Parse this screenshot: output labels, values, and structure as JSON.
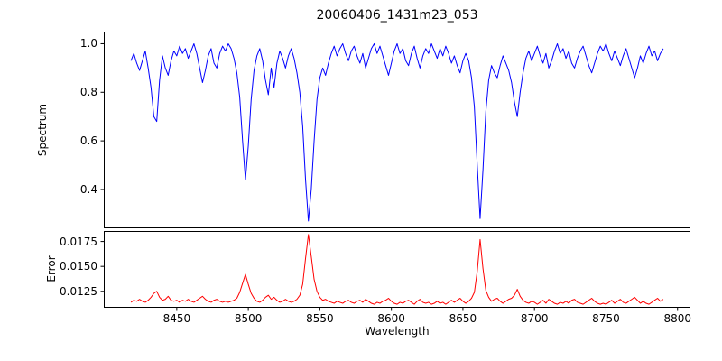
{
  "chart_data": {
    "type": "line",
    "title": "20060406_1431m23_053",
    "xlabel": "Wavelength",
    "grid": false,
    "legend_position": null,
    "xticks": [
      8450,
      8500,
      8550,
      8600,
      8650,
      8700,
      8750,
      8800
    ],
    "xtick_labels": [
      "8450",
      "8500",
      "8550",
      "8600",
      "8650",
      "8700",
      "8750",
      "8800"
    ],
    "x": [
      8418,
      8420,
      8422,
      8424,
      8426,
      8428,
      8430,
      8432,
      8434,
      8436,
      8438,
      8440,
      8442,
      8444,
      8446,
      8448,
      8450,
      8452,
      8454,
      8456,
      8458,
      8460,
      8462,
      8464,
      8466,
      8468,
      8470,
      8472,
      8474,
      8476,
      8478,
      8480,
      8482,
      8484,
      8486,
      8488,
      8490,
      8492,
      8494,
      8496,
      8498,
      8500,
      8502,
      8504,
      8506,
      8508,
      8510,
      8512,
      8514,
      8516,
      8518,
      8520,
      8522,
      8524,
      8526,
      8528,
      8530,
      8532,
      8534,
      8536,
      8538,
      8540,
      8542,
      8544,
      8546,
      8548,
      8550,
      8552,
      8554,
      8556,
      8558,
      8560,
      8562,
      8564,
      8566,
      8568,
      8570,
      8572,
      8574,
      8576,
      8578,
      8580,
      8582,
      8584,
      8586,
      8588,
      8590,
      8592,
      8594,
      8596,
      8598,
      8600,
      8602,
      8604,
      8606,
      8608,
      8610,
      8612,
      8614,
      8616,
      8618,
      8620,
      8622,
      8624,
      8626,
      8628,
      8630,
      8632,
      8634,
      8636,
      8638,
      8640,
      8642,
      8644,
      8646,
      8648,
      8650,
      8652,
      8654,
      8656,
      8658,
      8660,
      8662,
      8664,
      8666,
      8668,
      8670,
      8672,
      8674,
      8676,
      8678,
      8680,
      8682,
      8684,
      8686,
      8688,
      8690,
      8692,
      8694,
      8696,
      8698,
      8700,
      8702,
      8704,
      8706,
      8708,
      8710,
      8712,
      8714,
      8716,
      8718,
      8720,
      8722,
      8724,
      8726,
      8728,
      8730,
      8732,
      8734,
      8736,
      8738,
      8740,
      8742,
      8744,
      8746,
      8748,
      8750,
      8752,
      8754,
      8756,
      8758,
      8760,
      8762,
      8764,
      8766,
      8768,
      8770,
      8772,
      8774,
      8776,
      8778,
      8780,
      8782,
      8784,
      8786,
      8788,
      8790
    ],
    "panels": [
      {
        "name": "spectrum-line",
        "ylabel": "Spectrum",
        "color": "#0000ff",
        "xlim": [
          8399,
          8809
        ],
        "ylim": [
          0.24,
          1.05
        ],
        "yticks": [
          0.4,
          0.6,
          0.8,
          1.0
        ],
        "ytick_labels": [
          "0.4",
          "0.6",
          "0.8",
          "1.0"
        ],
        "y": [
          0.93,
          0.96,
          0.92,
          0.89,
          0.93,
          0.97,
          0.9,
          0.82,
          0.7,
          0.68,
          0.85,
          0.95,
          0.9,
          0.87,
          0.93,
          0.97,
          0.95,
          0.99,
          0.96,
          0.98,
          0.94,
          0.97,
          1.0,
          0.96,
          0.9,
          0.84,
          0.89,
          0.95,
          0.98,
          0.92,
          0.9,
          0.96,
          0.99,
          0.97,
          1.0,
          0.98,
          0.94,
          0.88,
          0.78,
          0.6,
          0.44,
          0.58,
          0.77,
          0.89,
          0.95,
          0.98,
          0.93,
          0.85,
          0.79,
          0.9,
          0.82,
          0.92,
          0.97,
          0.94,
          0.9,
          0.95,
          0.98,
          0.94,
          0.88,
          0.8,
          0.66,
          0.44,
          0.27,
          0.4,
          0.6,
          0.77,
          0.86,
          0.9,
          0.87,
          0.92,
          0.96,
          0.99,
          0.95,
          0.98,
          1.0,
          0.96,
          0.93,
          0.97,
          0.99,
          0.95,
          0.92,
          0.96,
          0.9,
          0.94,
          0.98,
          1.0,
          0.96,
          0.99,
          0.95,
          0.91,
          0.87,
          0.92,
          0.97,
          1.0,
          0.96,
          0.98,
          0.93,
          0.91,
          0.96,
          0.99,
          0.94,
          0.9,
          0.95,
          0.98,
          0.96,
          1.0,
          0.97,
          0.94,
          0.98,
          0.95,
          0.99,
          0.96,
          0.92,
          0.95,
          0.91,
          0.88,
          0.93,
          0.96,
          0.93,
          0.86,
          0.74,
          0.5,
          0.28,
          0.48,
          0.72,
          0.85,
          0.91,
          0.88,
          0.86,
          0.91,
          0.95,
          0.92,
          0.89,
          0.84,
          0.76,
          0.7,
          0.8,
          0.88,
          0.94,
          0.97,
          0.93,
          0.96,
          0.99,
          0.95,
          0.92,
          0.96,
          0.9,
          0.93,
          0.97,
          1.0,
          0.96,
          0.98,
          0.94,
          0.97,
          0.92,
          0.9,
          0.94,
          0.97,
          0.99,
          0.95,
          0.91,
          0.88,
          0.92,
          0.96,
          0.99,
          0.97,
          1.0,
          0.96,
          0.93,
          0.97,
          0.94,
          0.91,
          0.95,
          0.98,
          0.94,
          0.9,
          0.86,
          0.9,
          0.95,
          0.92,
          0.96,
          0.99,
          0.95,
          0.97,
          0.93,
          0.96,
          0.98
        ]
      },
      {
        "name": "error-line",
        "ylabel": "Error",
        "color": "#ff0000",
        "xlim": [
          8399,
          8809
        ],
        "ylim": [
          0.01085,
          0.01855
        ],
        "yticks": [
          0.0125,
          0.015,
          0.0175
        ],
        "ytick_labels": [
          "0.0125",
          "0.0150",
          "0.0175"
        ],
        "y": [
          0.0114,
          0.0116,
          0.0115,
          0.0117,
          0.0115,
          0.0114,
          0.0116,
          0.0119,
          0.0123,
          0.0125,
          0.0119,
          0.0116,
          0.0117,
          0.012,
          0.0116,
          0.0115,
          0.0116,
          0.0114,
          0.0116,
          0.0115,
          0.0117,
          0.0115,
          0.0114,
          0.0116,
          0.0118,
          0.012,
          0.0117,
          0.0115,
          0.0114,
          0.0116,
          0.0117,
          0.0115,
          0.0114,
          0.0115,
          0.0114,
          0.0115,
          0.0116,
          0.0118,
          0.0124,
          0.0133,
          0.0142,
          0.0132,
          0.0123,
          0.0118,
          0.0115,
          0.0114,
          0.0116,
          0.0119,
          0.0121,
          0.0117,
          0.0119,
          0.0116,
          0.0114,
          0.0115,
          0.0117,
          0.0115,
          0.0114,
          0.0115,
          0.0117,
          0.0121,
          0.0132,
          0.0158,
          0.0182,
          0.016,
          0.0137,
          0.0125,
          0.0119,
          0.0116,
          0.0117,
          0.0115,
          0.0114,
          0.0113,
          0.0115,
          0.0114,
          0.0113,
          0.0115,
          0.0116,
          0.0114,
          0.0113,
          0.0115,
          0.0116,
          0.0114,
          0.0117,
          0.0115,
          0.0113,
          0.0112,
          0.0114,
          0.0113,
          0.0115,
          0.0116,
          0.0118,
          0.0115,
          0.0113,
          0.0112,
          0.0114,
          0.0113,
          0.0115,
          0.0116,
          0.0114,
          0.0112,
          0.0115,
          0.0117,
          0.0114,
          0.0113,
          0.0114,
          0.0112,
          0.0113,
          0.0115,
          0.0113,
          0.0114,
          0.0112,
          0.0114,
          0.0116,
          0.0114,
          0.0116,
          0.0118,
          0.0115,
          0.0113,
          0.0115,
          0.0118,
          0.0124,
          0.0145,
          0.0177,
          0.0148,
          0.0126,
          0.0119,
          0.0115,
          0.0117,
          0.0118,
          0.0115,
          0.0113,
          0.0115,
          0.0117,
          0.0118,
          0.0121,
          0.0127,
          0.012,
          0.0116,
          0.0114,
          0.0113,
          0.0115,
          0.0114,
          0.0112,
          0.0114,
          0.0116,
          0.0113,
          0.0117,
          0.0115,
          0.0113,
          0.0112,
          0.0114,
          0.0113,
          0.0115,
          0.0113,
          0.0116,
          0.0117,
          0.0114,
          0.0113,
          0.0112,
          0.0114,
          0.0116,
          0.0118,
          0.0115,
          0.0113,
          0.0112,
          0.0113,
          0.0112,
          0.0114,
          0.0116,
          0.0113,
          0.0115,
          0.0117,
          0.0114,
          0.0113,
          0.0115,
          0.0117,
          0.0119,
          0.0116,
          0.0113,
          0.0115,
          0.0113,
          0.0112,
          0.0114,
          0.0116,
          0.0118,
          0.0115,
          0.0117
        ]
      }
    ]
  }
}
